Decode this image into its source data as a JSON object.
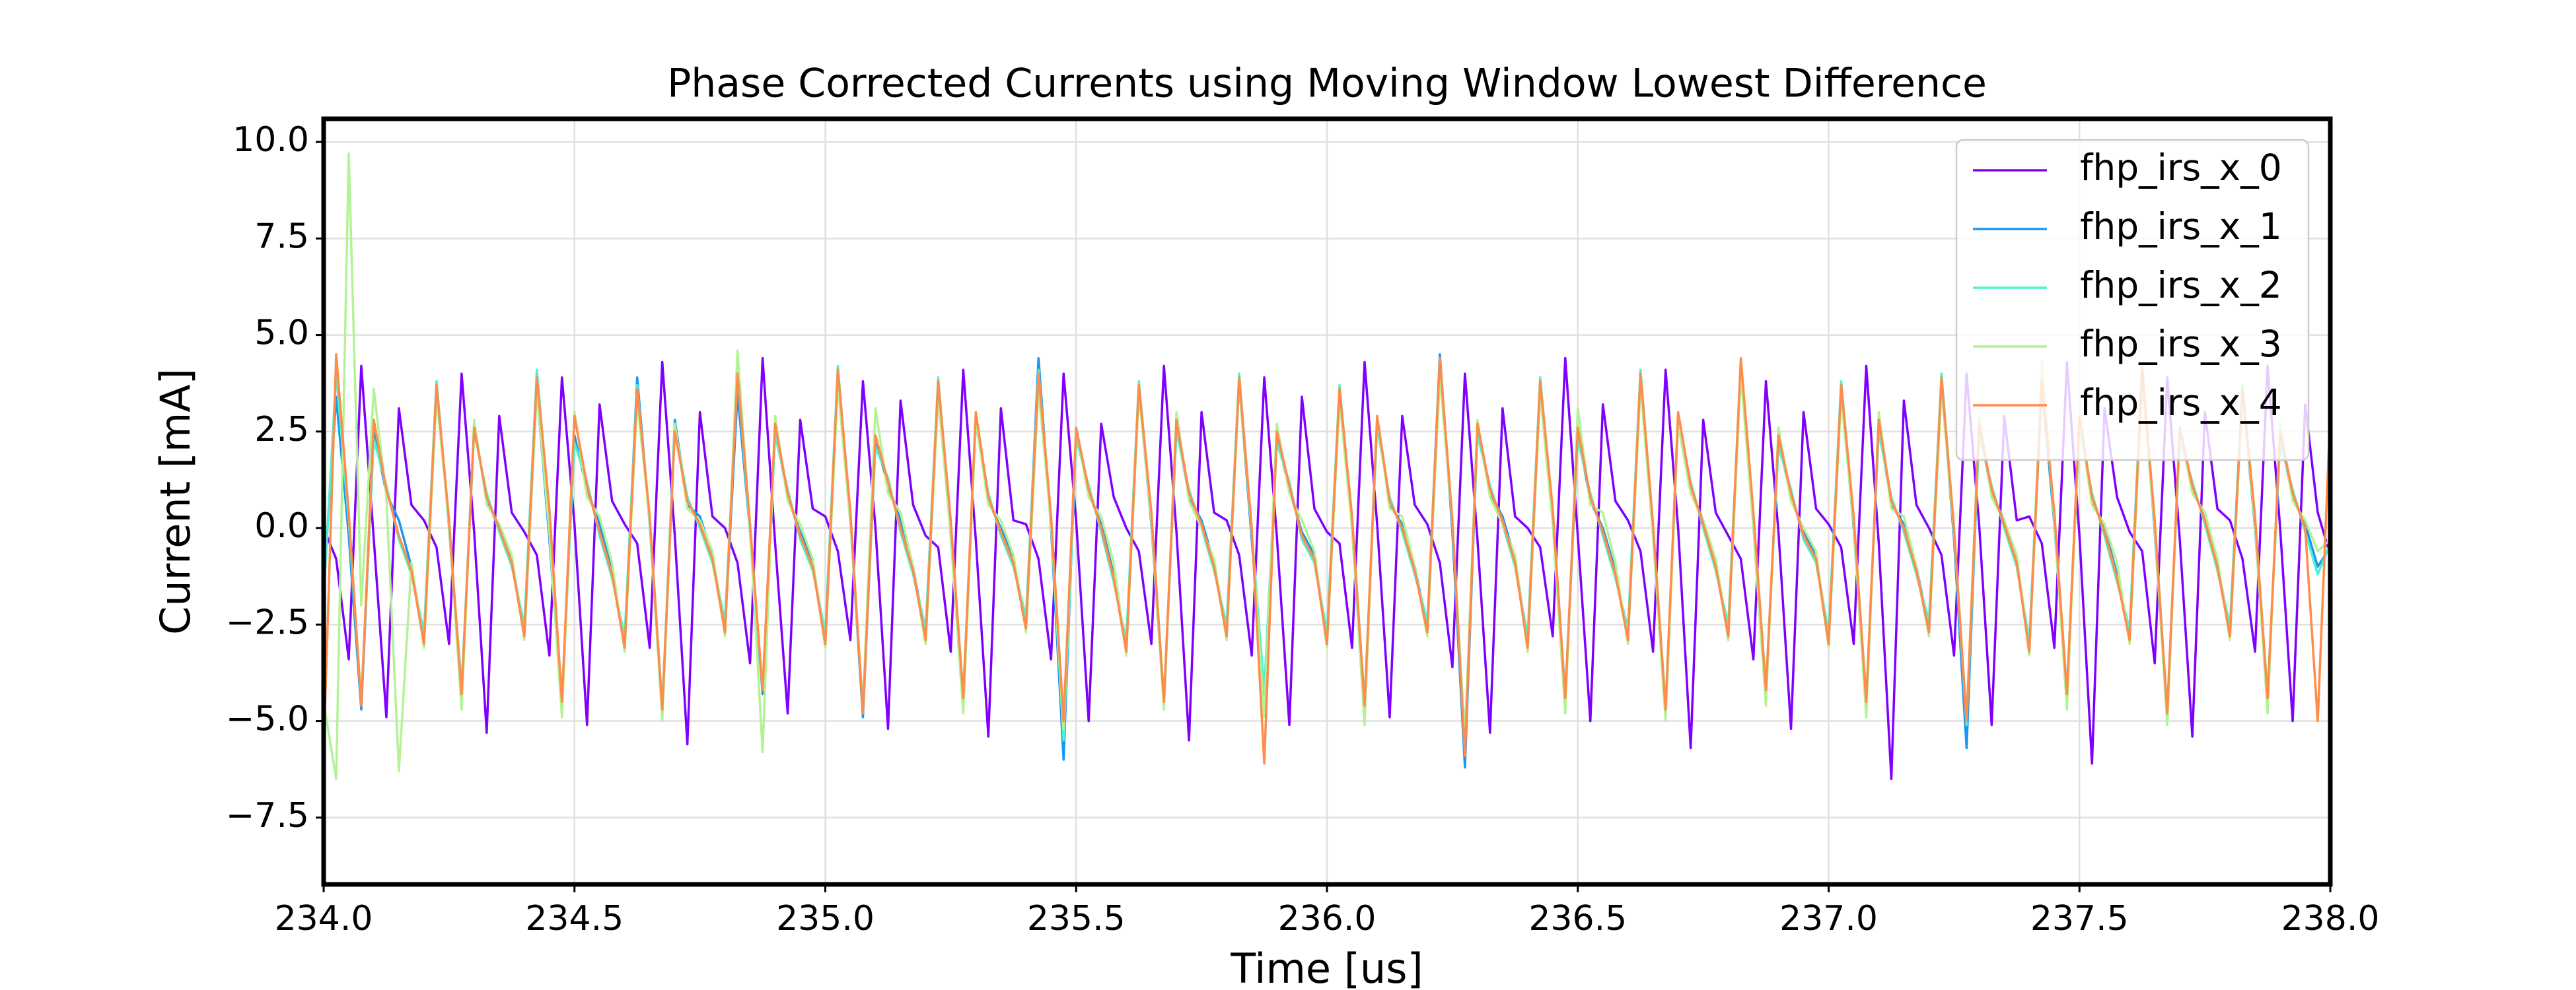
{
  "chart_data": {
    "type": "line",
    "title": "Phase Corrected Currents using Moving Window Lowest Difference",
    "x_label": "Time [us]",
    "y_label": "Current [mA]",
    "xlim": [
      234,
      238
    ],
    "ylim": [
      -9.23,
      10.6
    ],
    "xticks": [
      {
        "value": 234,
        "label": "234.0"
      },
      {
        "value": 234.5,
        "label": "234.5"
      },
      {
        "value": 235,
        "label": "235.0"
      },
      {
        "value": 235.5,
        "label": "235.5"
      },
      {
        "value": 236,
        "label": "236.0"
      },
      {
        "value": 236.5,
        "label": "236.5"
      },
      {
        "value": 237,
        "label": "237.0"
      },
      {
        "value": 237.5,
        "label": "237.5"
      },
      {
        "value": 238,
        "label": "238.0"
      }
    ],
    "yticks": [
      {
        "value": -7.5,
        "label": "−7.5"
      },
      {
        "value": -5,
        "label": "−5.0"
      },
      {
        "value": -2.5,
        "label": "−2.5"
      },
      {
        "value": 0,
        "label": "0.0"
      },
      {
        "value": 2.5,
        "label": "2.5"
      },
      {
        "value": 5,
        "label": "5.0"
      },
      {
        "value": 7.5,
        "label": "7.5"
      },
      {
        "value": 10,
        "label": "10.0"
      }
    ],
    "grid": true,
    "legend_position": "upper right",
    "x": [
      234,
      234.025,
      234.05,
      234.075,
      234.1,
      234.125,
      234.15,
      234.175,
      234.2,
      234.225,
      234.25,
      234.275,
      234.3,
      234.325,
      234.35,
      234.375,
      234.4,
      234.425,
      234.45,
      234.475,
      234.5,
      234.525,
      234.55,
      234.575,
      234.6,
      234.625,
      234.65,
      234.675,
      234.7,
      234.725,
      234.75,
      234.775,
      234.8,
      234.825,
      234.85,
      234.875,
      234.9,
      234.925,
      234.95,
      234.975,
      235,
      235.025,
      235.05,
      235.075,
      235.1,
      235.125,
      235.15,
      235.175,
      235.2,
      235.225,
      235.25,
      235.275,
      235.3,
      235.325,
      235.35,
      235.375,
      235.4,
      235.425,
      235.45,
      235.475,
      235.5,
      235.525,
      235.55,
      235.575,
      235.6,
      235.625,
      235.65,
      235.675,
      235.7,
      235.725,
      235.75,
      235.775,
      235.8,
      235.825,
      235.85,
      235.875,
      235.9,
      235.925,
      235.95,
      235.975,
      236,
      236.025,
      236.05,
      236.075,
      236.1,
      236.125,
      236.15,
      236.175,
      236.2,
      236.225,
      236.25,
      236.275,
      236.3,
      236.325,
      236.35,
      236.375,
      236.4,
      236.425,
      236.45,
      236.475,
      236.5,
      236.525,
      236.55,
      236.575,
      236.6,
      236.625,
      236.65,
      236.675,
      236.7,
      236.725,
      236.75,
      236.775,
      236.8,
      236.825,
      236.85,
      236.875,
      236.9,
      236.925,
      236.95,
      236.975,
      237,
      237.025,
      237.05,
      237.075,
      237.1,
      237.125,
      237.15,
      237.175,
      237.2,
      237.225,
      237.25,
      237.275,
      237.3,
      237.325,
      237.35,
      237.375,
      237.4,
      237.425,
      237.45,
      237.475,
      237.5,
      237.525,
      237.55,
      237.575,
      237.6,
      237.625,
      237.65,
      237.675,
      237.7,
      237.725,
      237.75,
      237.775,
      237.8,
      237.825,
      237.85,
      237.875,
      237.9,
      237.925,
      237.95,
      237.975,
      238
    ],
    "series": [
      {
        "name": "fhp_irs_x_0",
        "color": "#8000ff",
        "values": [
          0.0,
          -0.8,
          -3.4,
          4.2,
          -0.3,
          -4.9,
          3.1,
          0.6,
          0.2,
          -0.5,
          -3.0,
          4.0,
          -0.1,
          -5.3,
          2.9,
          0.4,
          -0.1,
          -0.7,
          -3.3,
          3.9,
          0.1,
          -5.1,
          3.2,
          0.7,
          0.1,
          -0.4,
          -3.1,
          4.3,
          -0.2,
          -5.6,
          3.0,
          0.3,
          0.0,
          -0.9,
          -3.5,
          4.4,
          -0.4,
          -4.8,
          2.8,
          0.5,
          0.3,
          -0.6,
          -2.9,
          3.8,
          0.0,
          -5.2,
          3.3,
          0.6,
          -0.2,
          -0.5,
          -3.2,
          4.1,
          -0.3,
          -5.4,
          3.1,
          0.2,
          0.1,
          -0.8,
          -3.4,
          4.0,
          0.2,
          -5.0,
          2.7,
          0.8,
          0.0,
          -0.6,
          -3.0,
          4.2,
          -0.1,
          -5.5,
          3.0,
          0.4,
          0.2,
          -0.7,
          -3.3,
          3.9,
          -0.2,
          -5.1,
          3.4,
          0.5,
          -0.1,
          -0.4,
          -3.1,
          4.3,
          0.1,
          -4.9,
          2.9,
          0.6,
          0.1,
          -0.9,
          -3.6,
          4.0,
          -0.3,
          -5.3,
          3.1,
          0.3,
          0.0,
          -0.5,
          -2.8,
          4.4,
          -0.2,
          -5.0,
          3.2,
          0.7,
          0.2,
          -0.6,
          -3.2,
          4.1,
          0.0,
          -5.7,
          2.8,
          0.4,
          -0.2,
          -0.8,
          -3.4,
          3.8,
          -0.1,
          -5.2,
          3.0,
          0.5,
          0.1,
          -0.5,
          -3.0,
          4.2,
          -0.4,
          -6.5,
          3.3,
          0.6,
          0.0,
          -0.7,
          -3.3,
          4.0,
          0.1,
          -5.1,
          2.9,
          0.2,
          0.3,
          -0.4,
          -3.1,
          4.3,
          -0.2,
          -6.1,
          3.1,
          0.8,
          -0.1,
          -0.6,
          -3.5,
          3.9,
          -0.3,
          -5.4,
          3.0,
          0.5,
          0.2,
          -0.8,
          -3.2,
          4.2,
          0.0,
          -5.0,
          3.2,
          0.4,
          -0.7
        ]
      },
      {
        "name": "fhp_irs_x_1",
        "color": "#1996f3",
        "values": [
          -1.5,
          3.4,
          -0.2,
          -4.7,
          2.5,
          0.9,
          0.2,
          -1.0,
          -2.9,
          3.8,
          0.0,
          -4.4,
          2.7,
          0.7,
          0.0,
          -0.8,
          -2.7,
          3.6,
          -0.3,
          -4.6,
          2.4,
          1.0,
          0.1,
          -1.1,
          -3.0,
          3.9,
          0.1,
          -4.8,
          2.8,
          0.6,
          0.3,
          -0.7,
          -2.6,
          3.5,
          -0.1,
          -4.3,
          2.6,
          0.8,
          -0.1,
          -0.9,
          -2.9,
          4.0,
          0.2,
          -4.9,
          2.3,
          1.1,
          0.2,
          -1.0,
          -2.8,
          3.7,
          -0.2,
          -4.5,
          2.9,
          0.7,
          0.0,
          -0.8,
          -2.5,
          4.4,
          0.0,
          -6.0,
          2.5,
          0.9,
          0.1,
          -1.2,
          -3.1,
          3.6,
          0.1,
          -4.6,
          2.7,
          0.8,
          0.2,
          -0.9,
          -2.7,
          3.8,
          -0.3,
          -4.4,
          2.4,
          1.0,
          -0.1,
          -0.7,
          -2.9,
          3.5,
          0.0,
          -4.7,
          2.8,
          0.6,
          0.1,
          -1.0,
          -2.6,
          4.5,
          -0.1,
          -6.2,
          2.6,
          0.9,
          0.3,
          -0.8,
          -3.0,
          3.7,
          0.2,
          -4.5,
          2.5,
          0.7,
          0.0,
          -1.1,
          -2.8,
          3.9,
          -0.2,
          -4.8,
          2.9,
          1.0,
          0.2,
          -0.9,
          -2.7,
          4.1,
          0.1,
          -4.3,
          2.3,
          0.8,
          -0.1,
          -0.7,
          -2.9,
          3.6,
          0.0,
          -4.6,
          2.7,
          0.6,
          0.1,
          -1.0,
          -2.6,
          3.8,
          -0.3,
          -5.7,
          2.6,
          0.9,
          0.2,
          -0.8,
          -3.1,
          3.7,
          0.1,
          -4.4,
          2.8,
          0.7,
          0.0,
          -1.2,
          -2.8,
          4.0,
          -0.1,
          -4.9,
          2.5,
          1.0,
          0.3,
          -0.9,
          -2.7,
          3.5,
          0.0,
          -4.5,
          2.4,
          0.8,
          0.1,
          -1.0,
          -0.5
        ]
      },
      {
        "name": "fhp_irs_x_2",
        "color": "#4df3ce",
        "values": [
          -1.8,
          4.0,
          0.2,
          -4.5,
          2.3,
          1.1,
          -0.3,
          -1.2,
          -2.7,
          3.8,
          0.0,
          -4.1,
          2.5,
          0.9,
          -0.1,
          -1.0,
          -2.5,
          4.1,
          0.3,
          -4.4,
          2.2,
          1.2,
          -0.2,
          -1.3,
          -2.8,
          3.7,
          0.1,
          -4.6,
          2.6,
          0.8,
          0.0,
          -0.9,
          -2.4,
          4.0,
          -0.1,
          -4.2,
          2.4,
          1.0,
          -0.3,
          -1.1,
          -2.7,
          4.2,
          0.2,
          -4.7,
          2.1,
          1.3,
          -0.1,
          -1.2,
          -2.6,
          3.9,
          0.0,
          -4.3,
          2.7,
          0.9,
          -0.2,
          -1.0,
          -2.3,
          4.1,
          0.2,
          -5.5,
          2.3,
          1.1,
          -0.1,
          -1.4,
          -2.9,
          3.8,
          0.3,
          -4.4,
          2.5,
          1.0,
          0.0,
          -1.1,
          -2.5,
          4.0,
          -0.1,
          -4.2,
          2.2,
          1.2,
          -0.3,
          -0.9,
          -2.7,
          3.7,
          0.2,
          -4.5,
          2.6,
          0.8,
          -0.1,
          -1.2,
          -2.4,
          4.2,
          0.1,
          -5.4,
          2.4,
          1.1,
          0.1,
          -1.0,
          -2.8,
          3.9,
          0.4,
          -4.3,
          2.3,
          0.9,
          -0.2,
          -1.3,
          -2.6,
          4.1,
          0.0,
          -4.6,
          2.7,
          1.2,
          0.0,
          -1.1,
          -2.5,
          4.3,
          0.3,
          -4.1,
          2.1,
          1.0,
          -0.3,
          -0.9,
          -2.7,
          3.8,
          0.2,
          -4.4,
          2.5,
          0.8,
          -0.1,
          -1.2,
          -2.4,
          4.0,
          -0.1,
          -5.1,
          2.4,
          1.1,
          0.0,
          -1.0,
          -2.9,
          3.9,
          0.3,
          -4.2,
          2.6,
          0.9,
          -0.2,
          -1.4,
          -2.6,
          4.2,
          0.1,
          -4.7,
          2.3,
          1.2,
          0.1,
          -1.1,
          -2.5,
          3.7,
          0.2,
          -4.3,
          2.2,
          1.0,
          -0.1,
          -1.2,
          -0.4
        ]
      },
      {
        "name": "fhp_irs_x_3",
        "color": "#b3f396",
        "values": [
          -4.5,
          -6.5,
          9.7,
          -2.0,
          3.6,
          0.8,
          -6.3,
          -0.9,
          -3.1,
          3.4,
          0.1,
          -4.7,
          2.8,
          0.6,
          0.1,
          -0.7,
          -2.9,
          3.6,
          -0.1,
          -4.9,
          3.0,
          0.8,
          0.3,
          -0.9,
          -3.2,
          3.3,
          0.2,
          -5.0,
          2.7,
          0.5,
          0.2,
          -0.6,
          -2.8,
          4.6,
          0.0,
          -5.8,
          2.9,
          0.7,
          0.1,
          -0.8,
          -3.1,
          3.7,
          0.1,
          -4.6,
          3.1,
          0.9,
          0.4,
          -1.0,
          -3.0,
          3.4,
          -0.2,
          -4.8,
          2.8,
          0.6,
          0.2,
          -0.7,
          -2.7,
          3.6,
          0.1,
          -5.2,
          2.6,
          0.8,
          0.3,
          -0.9,
          -3.3,
          3.5,
          0.2,
          -4.7,
          3.0,
          0.7,
          0.0,
          -0.8,
          -2.9,
          3.8,
          -0.1,
          -4.9,
          2.7,
          0.9,
          0.2,
          -0.6,
          -3.1,
          3.3,
          0.0,
          -5.1,
          2.9,
          0.5,
          0.3,
          -1.0,
          -2.8,
          3.9,
          0.2,
          -5.5,
          2.8,
          0.8,
          0.1,
          -0.7,
          -3.2,
          3.5,
          0.1,
          -4.8,
          3.1,
          0.6,
          0.4,
          -0.9,
          -3.0,
          3.7,
          -0.2,
          -5.0,
          2.7,
          0.9,
          0.2,
          -0.8,
          -2.9,
          4.0,
          0.0,
          -4.6,
          2.6,
          0.7,
          0.0,
          -0.6,
          -3.1,
          3.4,
          0.1,
          -4.9,
          3.0,
          0.5,
          0.3,
          -1.0,
          -2.8,
          3.6,
          -0.1,
          -5.0,
          2.9,
          0.8,
          0.2,
          -0.7,
          -3.3,
          4.3,
          0.2,
          -4.7,
          2.8,
          0.6,
          0.1,
          -0.9,
          -3.0,
          3.8,
          0.0,
          -5.1,
          2.6,
          0.9,
          0.4,
          -0.8,
          -2.9,
          3.5,
          0.1,
          -4.8,
          2.7,
          0.7,
          0.2,
          -0.6,
          -0.3
        ]
      },
      {
        "name": "fhp_irs_x_4",
        "color": "#ff8c4a",
        "values": [
          -5.8,
          4.5,
          0.4,
          -4.6,
          2.8,
          1.0,
          -0.2,
          -1.1,
          -3.0,
          3.7,
          0.2,
          -4.3,
          2.6,
          0.8,
          0.0,
          -0.9,
          -2.8,
          3.9,
          0.5,
          -4.5,
          2.9,
          1.1,
          -0.1,
          -1.2,
          -3.1,
          3.6,
          0.3,
          -4.7,
          2.5,
          0.7,
          0.1,
          -0.8,
          -2.7,
          4.0,
          0.1,
          -4.2,
          2.7,
          0.9,
          -0.2,
          -1.0,
          -3.0,
          4.1,
          0.4,
          -4.8,
          2.4,
          1.2,
          0.0,
          -1.1,
          -2.9,
          3.8,
          0.2,
          -4.4,
          3.0,
          0.8,
          -0.1,
          -0.9,
          -2.6,
          4.0,
          0.3,
          -5.0,
          2.6,
          1.0,
          0.0,
          -1.3,
          -3.2,
          3.7,
          0.4,
          -4.5,
          2.8,
          0.9,
          0.1,
          -1.0,
          -2.8,
          3.9,
          0.0,
          -6.1,
          2.5,
          1.1,
          -0.2,
          -0.8,
          -3.0,
          3.6,
          0.3,
          -4.6,
          2.9,
          0.7,
          0.0,
          -1.1,
          -2.7,
          4.4,
          0.2,
          -5.9,
          2.7,
          1.0,
          0.2,
          -0.9,
          -3.1,
          3.8,
          0.5,
          -4.4,
          2.6,
          0.8,
          -0.1,
          -1.2,
          -2.9,
          4.0,
          0.1,
          -4.7,
          3.0,
          1.1,
          0.1,
          -1.0,
          -2.8,
          4.4,
          0.4,
          -4.2,
          2.4,
          0.9,
          -0.2,
          -0.8,
          -3.0,
          3.7,
          0.3,
          -4.5,
          2.8,
          0.7,
          0.0,
          -1.1,
          -2.7,
          3.9,
          0.0,
          -5.0,
          2.7,
          1.0,
          0.1,
          -0.9,
          -3.2,
          3.8,
          0.4,
          -4.3,
          2.9,
          0.8,
          -0.1,
          -1.3,
          -2.9,
          4.1,
          0.2,
          -4.8,
          2.6,
          1.1,
          0.2,
          -1.0,
          -2.8,
          3.6,
          0.3,
          -4.4,
          2.5,
          0.9,
          0.0,
          -5.0,
          3.0
        ]
      }
    ]
  }
}
